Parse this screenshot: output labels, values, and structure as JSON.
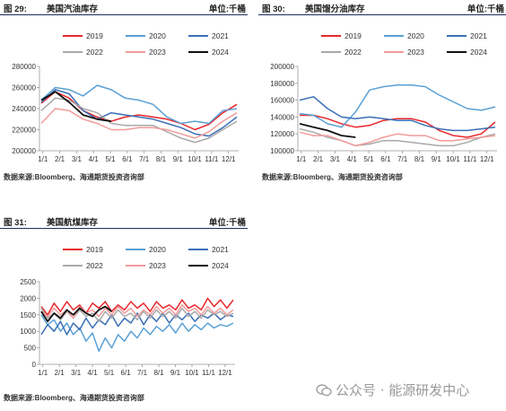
{
  "panels": [
    {
      "label": "图 29:",
      "title": "美国汽油库存",
      "unit": "单位:千桶",
      "source": "数据来源:Bloomberg、海通期货投资咨询部"
    },
    {
      "label": "图 30:",
      "title": "美国馏分油库存",
      "unit": "单位:千桶",
      "source": "数据来源:Bloomberg、海通期货投资咨询部"
    },
    {
      "label": "图 31:",
      "title": "美国航煤库存",
      "unit": "单位:千桶",
      "source": "数据来源:Bloomberg、海通期货投资咨询部"
    }
  ],
  "watermark": "公众号 · 能源研发中心",
  "chart_data": [
    {
      "type": "line",
      "title": "美国汽油库存",
      "unit": "千桶",
      "x_ticks": [
        "1/1",
        "2/1",
        "3/1",
        "4/1",
        "5/1",
        "6/1",
        "7/1",
        "8/1",
        "9/1",
        "10/1",
        "11/1",
        "12/1"
      ],
      "ylim": [
        200000,
        280000
      ],
      "y_ticks": [
        "200000",
        "220000",
        "240000",
        "260000",
        "280000"
      ],
      "legend_position": "top",
      "grid": false,
      "series": [
        {
          "name": "2019",
          "color": "#e8262a",
          "values": [
            245000,
            256000,
            250000,
            238000,
            232000,
            228000,
            232000,
            234000,
            232000,
            230000,
            226000,
            220000,
            225000,
            236000,
            244000
          ]
        },
        {
          "name": "2020",
          "color": "#5aa0d5",
          "values": [
            248000,
            260000,
            258000,
            252000,
            262000,
            258000,
            250000,
            248000,
            244000,
            232000,
            226000,
            228000,
            226000,
            238000,
            240000
          ]
        },
        {
          "name": "2021",
          "color": "#3a6fb6",
          "values": [
            246000,
            258000,
            254000,
            238000,
            230000,
            236000,
            234000,
            232000,
            230000,
            226000,
            222000,
            216000,
            214000,
            222000,
            232000
          ]
        },
        {
          "name": "2022",
          "color": "#a9a9a9",
          "values": [
            238000,
            250000,
            248000,
            240000,
            236000,
            226000,
            224000,
            224000,
            224000,
            218000,
            212000,
            208000,
            212000,
            220000,
            228000
          ]
        },
        {
          "name": "2023",
          "color": "#f29a9a",
          "values": [
            226000,
            240000,
            238000,
            230000,
            226000,
            220000,
            220000,
            222000,
            222000,
            220000,
            216000,
            212000,
            218000,
            228000,
            236000
          ]
        },
        {
          "name": "2024",
          "color": "#111111",
          "values": [
            248000,
            256000,
            246000,
            234000,
            230000,
            228000
          ]
        }
      ]
    },
    {
      "type": "line",
      "title": "美国馏分油库存",
      "unit": "千桶",
      "x_ticks": [
        "1/1",
        "2/1",
        "3/1",
        "4/1",
        "5/1",
        "6/1",
        "7/1",
        "8/1",
        "9/1",
        "10/1",
        "11/1",
        "12/1"
      ],
      "ylim": [
        100000,
        200000
      ],
      "y_ticks": [
        "100000",
        "120000",
        "140000",
        "160000",
        "180000",
        "200000"
      ],
      "legend_position": "top",
      "grid": false,
      "series": [
        {
          "name": "2019",
          "color": "#e8262a",
          "values": [
            142000,
            142000,
            138000,
            132000,
            128000,
            130000,
            136000,
            138000,
            138000,
            134000,
            124000,
            118000,
            116000,
            120000,
            134000
          ]
        },
        {
          "name": "2020",
          "color": "#5aa0d5",
          "values": [
            144000,
            142000,
            132000,
            128000,
            146000,
            172000,
            176000,
            178000,
            178000,
            176000,
            166000,
            158000,
            150000,
            148000,
            152000
          ]
        },
        {
          "name": "2021",
          "color": "#3a6fb6",
          "values": [
            160000,
            164000,
            150000,
            140000,
            138000,
            140000,
            138000,
            136000,
            136000,
            130000,
            126000,
            124000,
            124000,
            126000,
            128000
          ]
        },
        {
          "name": "2022",
          "color": "#a9a9a9",
          "values": [
            126000,
            122000,
            116000,
            112000,
            106000,
            108000,
            112000,
            112000,
            110000,
            108000,
            106000,
            106000,
            110000,
            116000,
            120000
          ]
        },
        {
          "name": "2023",
          "color": "#f29a9a",
          "values": [
            122000,
            118000,
            118000,
            112000,
            106000,
            110000,
            116000,
            120000,
            118000,
            118000,
            112000,
            112000,
            114000,
            116000,
            118000
          ]
        },
        {
          "name": "2024",
          "color": "#111111",
          "values": [
            132000,
            128000,
            124000,
            118000,
            116000
          ]
        }
      ]
    },
    {
      "type": "line",
      "title": "美国航煤库存",
      "unit": "千桶",
      "x_ticks": [
        "1/1",
        "2/1",
        "3/1",
        "4/1",
        "5/1",
        "6/1",
        "7/1",
        "8/1",
        "9/1",
        "10/1",
        "11/1",
        "12/1"
      ],
      "ylim": [
        0,
        2500
      ],
      "y_ticks": [
        "0",
        "500",
        "1000",
        "1500",
        "2000",
        "2500"
      ],
      "legend_position": "top",
      "grid": false,
      "series": [
        {
          "name": "2019",
          "color": "#e8262a",
          "values": [
            1750,
            1500,
            1850,
            1600,
            1900,
            1650,
            1800,
            1550,
            1850,
            1700,
            1900,
            1600,
            1800,
            1650,
            1900,
            1700,
            1850,
            1600,
            1900,
            1700,
            1800,
            1650,
            1950,
            1700,
            1800,
            1650,
            2000,
            1750,
            1950,
            1700,
            1950
          ]
        },
        {
          "name": "2020",
          "color": "#5aa0d5",
          "values": [
            1500,
            1200,
            1350,
            1000,
            1250,
            900,
            1100,
            700,
            950,
            400,
            800,
            500,
            900,
            700,
            1000,
            800,
            1100,
            900,
            1150,
            1000,
            1200,
            950,
            1250,
            1000,
            1200,
            1050,
            1250,
            1100,
            1200,
            1150,
            1250
          ]
        },
        {
          "name": "2021",
          "color": "#3a6fb6",
          "values": [
            900,
            1200,
            1000,
            1300,
            900,
            1250,
            1050,
            1400,
            1100,
            1350,
            1200,
            1500,
            1150,
            1400,
            1250,
            1550,
            1200,
            1500,
            1300,
            1550,
            1250,
            1500,
            1350,
            1550,
            1300,
            1500,
            1400,
            1550,
            1350,
            1500,
            1450
          ]
        },
        {
          "name": "2022",
          "color": "#a9a9a9",
          "values": [
            1700,
            1400,
            1550,
            1350,
            1600,
            1400,
            1650,
            1450,
            1550,
            1300,
            1600,
            1400,
            1650,
            1450,
            1550,
            1350,
            1600,
            1400,
            1650,
            1450,
            1600,
            1400,
            1700,
            1450,
            1600,
            1400,
            1650,
            1500,
            1600,
            1450,
            1550
          ]
        },
        {
          "name": "2023",
          "color": "#f29a9a",
          "values": [
            1600,
            1450,
            1700,
            1500,
            1650,
            1400,
            1750,
            1550,
            1650,
            1450,
            1700,
            1500,
            1750,
            1550,
            1700,
            1450,
            1650,
            1500,
            1750,
            1550,
            1700,
            1500,
            1800,
            1600,
            1700,
            1500,
            1750,
            1550,
            1700,
            1500,
            1650
          ]
        },
        {
          "name": "2024",
          "color": "#111111",
          "values": [
            1600,
            1300,
            1550,
            1400,
            1650,
            1500,
            1700,
            1550,
            1450,
            1650,
            1750,
            1600
          ]
        }
      ]
    }
  ]
}
